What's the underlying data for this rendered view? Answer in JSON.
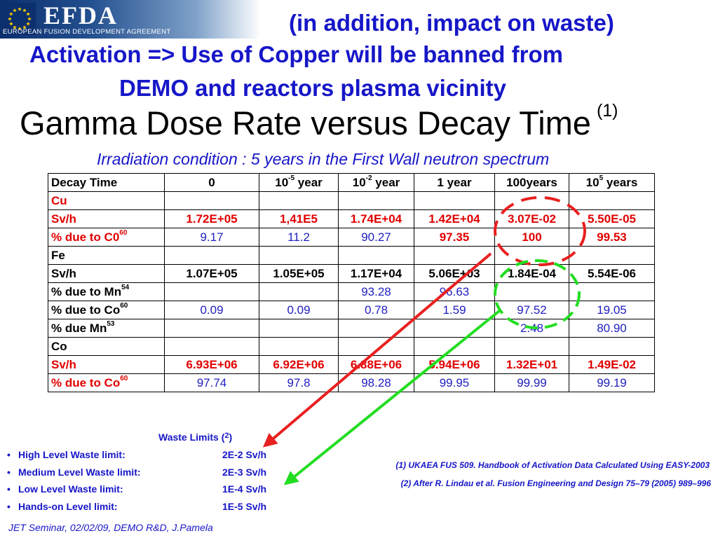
{
  "logo": {
    "name": "EFDA",
    "subtitle": "EUROPEAN FUSION DEVELOPMENT AGREEMENT"
  },
  "headlines": {
    "line1": "(in addition, impact on waste)",
    "line2": "Activation => Use of Copper will be banned from",
    "line3": "DEMO and reactors plasma vicinity"
  },
  "title": {
    "text": "Gamma Dose Rate versus Decay Time",
    "note": "(1)"
  },
  "subtitle": "Irradiation condition : 5 years in the First Wall neutron spectrum",
  "table": {
    "header": {
      "c0": "Decay Time",
      "c1": "0",
      "c2_base": "10",
      "c2_sup": "-5",
      "c2_unit": " year",
      "c3_base": "10",
      "c3_sup": "-2",
      "c3_unit": " year",
      "c4": "1 year",
      "c5": "100years",
      "c6_base": "10",
      "c6_sup": "5",
      "c6_unit": " years"
    },
    "rows": [
      {
        "label": "Cu",
        "cells": [
          "",
          "",
          "",
          "",
          "",
          ""
        ]
      },
      {
        "label": "Sv/h",
        "cells": [
          "1.72E+05",
          "1,41E5",
          "1.74E+04",
          "1.42E+04",
          "3.07E-02",
          "5.50E-05"
        ]
      },
      {
        "label": "% due to C0",
        "sup": "60",
        "cells": [
          "9.17",
          "11.2",
          "90.27",
          "97.35",
          "100",
          "99.53"
        ]
      },
      {
        "label": "Fe",
        "cells": [
          "",
          "",
          "",
          "",
          "",
          ""
        ]
      },
      {
        "label": "Sv/h",
        "cells": [
          "1.07E+05",
          "1.05E+05",
          "1.17E+04",
          "5.06E+03",
          "1.84E-04",
          "5.54E-06"
        ]
      },
      {
        "label": "% due to Mn",
        "sup": "54",
        "cells": [
          "",
          "",
          "93.28",
          "96.63",
          "",
          ""
        ]
      },
      {
        "label": "% due to Co",
        "sup": "60",
        "cells": [
          "0.09",
          "0.09",
          "0.78",
          "1.59",
          "97.52",
          "19.05"
        ]
      },
      {
        "label": "% due Mn",
        "sup": "53",
        "cells": [
          "",
          "",
          "",
          "",
          "2.48",
          "80.90"
        ]
      },
      {
        "label": "Co",
        "cells": [
          "",
          "",
          "",
          "",
          "",
          ""
        ]
      },
      {
        "label": "Sv/h",
        "cells": [
          "6.93E+06",
          "6.92E+06",
          "6.88E+06",
          "5.94E+06",
          "1.32E+01",
          "1.49E-02"
        ]
      },
      {
        "label": "% due to Co",
        "sup": "60",
        "cells": [
          "97.74",
          "97.8",
          "98.28",
          "99.95",
          "99.99",
          "99.19"
        ]
      }
    ]
  },
  "waste_limits": {
    "heading": "Waste Limits (",
    "heading_sup": "2",
    "heading_end": ")",
    "items": [
      {
        "label": "High Level Waste limit:",
        "value": "2E-2 Sv/h"
      },
      {
        "label": "Medium Level Waste limit:",
        "value": "2E-3 Sv/h"
      },
      {
        "label": "Low Level Waste limit:",
        "value": "1E-4 Sv/h"
      },
      {
        "label": "Hands-on Level limit:",
        "value": "1E-5 Sv/h"
      }
    ]
  },
  "references": [
    "(1)     UKAEA FUS 509. Handbook of Activation Data Calculated Using EASY-2003",
    "(2)     After R. Lindau et al. Fusion Engineering and Design 75–79 (2005) 989–996"
  ],
  "footer": "JET Seminar, 02/02/09, DEMO R&D, J.Pamela",
  "colors": {
    "heading_blue": "#1616c8",
    "value_red": "#e00000",
    "marker_red": "#e82020",
    "marker_green": "#22dd22"
  }
}
